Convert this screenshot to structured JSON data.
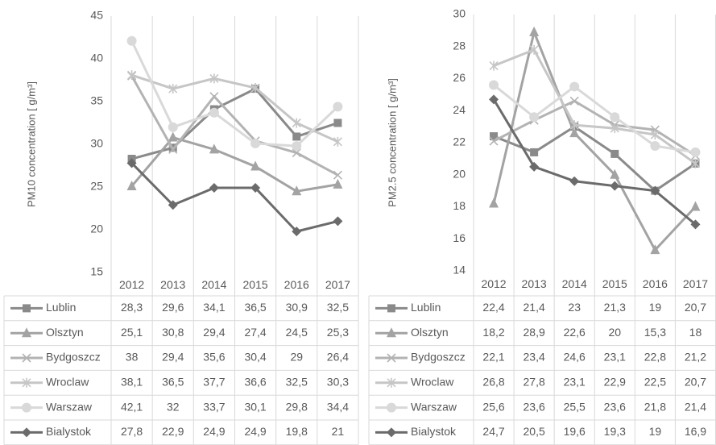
{
  "chart_data": [
    {
      "type": "line",
      "ylabel": "PM10 concentration [ g/m³]",
      "categories": [
        "2012",
        "2013",
        "2014",
        "2015",
        "2016",
        "2017"
      ],
      "ylim": [
        15,
        45
      ],
      "yticks": [
        15,
        20,
        25,
        30,
        35,
        40,
        45
      ],
      "grid": true,
      "series": [
        {
          "name": "Lublin",
          "color": "#8a8a8a",
          "marker": "square",
          "values": [
            28.3,
            29.6,
            34.1,
            36.5,
            30.9,
            32.5
          ],
          "value_labels": [
            "28,3",
            "29,6",
            "34,1",
            "36,5",
            "30,9",
            "32,5"
          ]
        },
        {
          "name": "Olsztyn",
          "color": "#a3a3a3",
          "marker": "triangle",
          "values": [
            25.1,
            30.8,
            29.4,
            27.4,
            24.5,
            25.3
          ],
          "value_labels": [
            "25,1",
            "30,8",
            "29,4",
            "27,4",
            "24,5",
            "25,3"
          ]
        },
        {
          "name": "Bydgoszcz",
          "color": "#b3b3b3",
          "marker": "x",
          "values": [
            38,
            29.4,
            35.6,
            30.4,
            29,
            26.4
          ],
          "value_labels": [
            "38",
            "29,4",
            "35,6",
            "30,4",
            "29",
            "26,4"
          ]
        },
        {
          "name": "Wroclaw",
          "color": "#c6c6c6",
          "marker": "star",
          "values": [
            38.1,
            36.5,
            37.7,
            36.6,
            32.5,
            30.3
          ],
          "value_labels": [
            "38,1",
            "36,5",
            "37,7",
            "36,6",
            "32,5",
            "30,3"
          ]
        },
        {
          "name": "Warszaw",
          "color": "#d9d9d9",
          "marker": "circle",
          "values": [
            42.1,
            32,
            33.7,
            30.1,
            29.8,
            34.4
          ],
          "value_labels": [
            "42,1",
            "32",
            "33,7",
            "30,1",
            "29,8",
            "34,4"
          ]
        },
        {
          "name": "Bialystok",
          "color": "#6b6b6b",
          "marker": "diamond",
          "values": [
            27.8,
            22.9,
            24.9,
            24.9,
            19.8,
            21
          ],
          "value_labels": [
            "27,8",
            "22,9",
            "24,9",
            "24,9",
            "19,8",
            "21"
          ]
        }
      ]
    },
    {
      "type": "line",
      "ylabel": "PM2.5 concentration [ g/m³]",
      "categories": [
        "2012",
        "2013",
        "2014",
        "2015",
        "2016",
        "2017"
      ],
      "ylim": [
        14,
        30
      ],
      "yticks": [
        14,
        16,
        18,
        20,
        22,
        24,
        26,
        28,
        30
      ],
      "grid": true,
      "series": [
        {
          "name": "Lublin",
          "color": "#8a8a8a",
          "marker": "square",
          "values": [
            22.4,
            21.4,
            23,
            21.3,
            19,
            20.7
          ],
          "value_labels": [
            "22,4",
            "21,4",
            "23",
            "21,3",
            "19",
            "20,7"
          ]
        },
        {
          "name": "Olsztyn",
          "color": "#a3a3a3",
          "marker": "triangle",
          "values": [
            18.2,
            28.9,
            22.6,
            20,
            15.3,
            18
          ],
          "value_labels": [
            "18,2",
            "28,9",
            "22,6",
            "20",
            "15,3",
            "18"
          ]
        },
        {
          "name": "Bydgoszcz",
          "color": "#b3b3b3",
          "marker": "x",
          "values": [
            22.1,
            23.4,
            24.6,
            23.1,
            22.8,
            21.2
          ],
          "value_labels": [
            "22,1",
            "23,4",
            "24,6",
            "23,1",
            "22,8",
            "21,2"
          ]
        },
        {
          "name": "Wroclaw",
          "color": "#c6c6c6",
          "marker": "star",
          "values": [
            26.8,
            27.8,
            23.1,
            22.9,
            22.5,
            20.7
          ],
          "value_labels": [
            "26,8",
            "27,8",
            "23,1",
            "22,9",
            "22,5",
            "20,7"
          ]
        },
        {
          "name": "Warszaw",
          "color": "#d9d9d9",
          "marker": "circle",
          "values": [
            25.6,
            23.6,
            25.5,
            23.6,
            21.8,
            21.4
          ],
          "value_labels": [
            "25,6",
            "23,6",
            "25,5",
            "23,6",
            "21,8",
            "21,4"
          ]
        },
        {
          "name": "Bialystok",
          "color": "#6b6b6b",
          "marker": "diamond",
          "values": [
            24.7,
            20.5,
            19.6,
            19.3,
            19,
            16.9
          ],
          "value_labels": [
            "24,7",
            "20,5",
            "19,6",
            "19,3",
            "19",
            "16,9"
          ]
        }
      ]
    }
  ]
}
